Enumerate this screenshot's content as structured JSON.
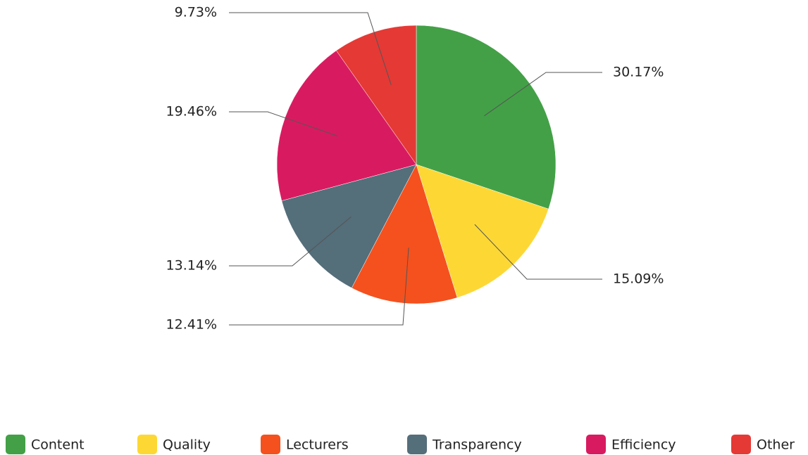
{
  "chart_data": {
    "type": "pie",
    "categories": [
      "Content",
      "Quality",
      "Lecturers",
      "Transparency",
      "Efficiency",
      "Other"
    ],
    "values": [
      30.17,
      15.09,
      12.41,
      13.14,
      19.46,
      9.73
    ],
    "value_labels": [
      "30.17%",
      "15.09%",
      "12.41%",
      "13.14%",
      "19.46%",
      "9.73%"
    ],
    "colors": [
      "#43a047",
      "#fdd835",
      "#f4511e",
      "#546e7a",
      "#d81b60",
      "#e53935"
    ],
    "legend": "bottom"
  }
}
